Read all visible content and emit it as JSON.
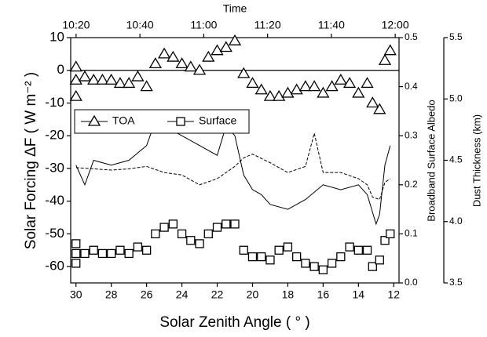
{
  "chart_data": {
    "type": "scatter",
    "xlabel": "Solar Zenith Angle ( ° )",
    "ylabel": "Solar Forcing ΔF ( W m⁻² )",
    "x2label": "Time",
    "y2label": "Broadband Surface Albedo",
    "y3label": "Dust Thickness (km)",
    "xlim": [
      30.3,
      11.7
    ],
    "xticks": [
      30,
      28,
      26,
      24,
      22,
      20,
      18,
      16,
      14,
      12
    ],
    "x2lim": [
      618.3,
      721.2
    ],
    "x2ticks": [
      {
        "value": 620,
        "label": "10:20"
      },
      {
        "value": 640,
        "label": "10:40"
      },
      {
        "value": 660,
        "label": "11:00"
      },
      {
        "value": 680,
        "label": "11:20"
      },
      {
        "value": 700,
        "label": "11:40"
      },
      {
        "value": 720,
        "label": "12:00"
      }
    ],
    "ylim": [
      -65,
      10
    ],
    "yticks": [
      -60,
      -50,
      -40,
      -30,
      -20,
      -10,
      0,
      10
    ],
    "y2lim": [
      0,
      0.5
    ],
    "y2ticks": [
      {
        "value": 0,
        "label": "0.0"
      },
      0.1,
      0.2,
      0.3,
      0.4,
      0.5
    ],
    "y3lim": [
      3.5,
      5.5
    ],
    "y3ticks": [
      3.5,
      {
        "value": 4,
        "label": "4.0"
      },
      4.5,
      {
        "value": 5,
        "label": "5.0"
      },
      5.5
    ],
    "zero_line": true,
    "legend": "upper left",
    "series": [
      {
        "name": "TOA",
        "marker": "triangle",
        "color": "#000",
        "x": [
          30,
          30,
          30,
          29.5,
          29,
          28.5,
          28,
          27.5,
          27,
          26.5,
          26,
          25.5,
          25,
          24.5,
          24,
          23.5,
          23,
          22.5,
          22,
          21.5,
          21,
          20.5,
          20,
          19.5,
          19,
          18.5,
          18,
          17.5,
          17,
          16.5,
          16,
          15.5,
          15,
          14.5,
          14,
          13.5,
          13.2,
          12.8,
          12.5,
          12.2
        ],
        "values": [
          1,
          -3,
          -8,
          -2,
          -3,
          -3,
          -3,
          -4,
          -4,
          -2,
          -5,
          2,
          5,
          4,
          2,
          1,
          0,
          4,
          6,
          7,
          9,
          -1,
          -4,
          -6,
          -8,
          -8,
          -7,
          -6,
          -5,
          -5,
          -7,
          -5,
          -3,
          -4,
          -7,
          -4,
          -10,
          -12,
          3,
          6
        ]
      },
      {
        "name": "Surface",
        "marker": "square",
        "color": "#000",
        "x": [
          30,
          30,
          30,
          29.5,
          29,
          28.5,
          28,
          27.5,
          27,
          26.5,
          26,
          25.5,
          25,
          24.5,
          24,
          23.5,
          23,
          22.5,
          22,
          21.5,
          21,
          20.5,
          20,
          19.5,
          19,
          18.5,
          18,
          17.5,
          17,
          16.5,
          16,
          15.5,
          15,
          14.5,
          14,
          13.5,
          13.2,
          12.8,
          12.5,
          12.2
        ],
        "values": [
          -53,
          -56,
          -59,
          -56,
          -55,
          -56,
          -56,
          -55,
          -56,
          -54,
          -55,
          -50,
          -48,
          -47,
          -50,
          -52,
          -53,
          -50,
          -48,
          -47,
          -47,
          -55,
          -57,
          -57,
          -58,
          -55,
          -54,
          -57,
          -59,
          -60,
          -61,
          -59,
          -57,
          -54,
          -55,
          -55,
          -60,
          -58,
          -52,
          -50
        ]
      },
      {
        "axis": "y2",
        "line": "solid",
        "color": "#000",
        "x": [
          30,
          29.5,
          29,
          28,
          27,
          26,
          25.5,
          25,
          24.5,
          24,
          23,
          22,
          21.5,
          21,
          20.5,
          20,
          19.5,
          19,
          18,
          17,
          16,
          15,
          14,
          13.5,
          13,
          12.8,
          12.5,
          12.2
        ],
        "values": [
          0.24,
          0.2,
          0.25,
          0.24,
          0.25,
          0.28,
          0.33,
          0.32,
          0.31,
          0.3,
          0.28,
          0.26,
          0.32,
          0.3,
          0.22,
          0.19,
          0.18,
          0.16,
          0.15,
          0.17,
          0.2,
          0.19,
          0.2,
          0.18,
          0.12,
          0.14,
          0.24,
          0.28
        ]
      },
      {
        "axis": "y3",
        "line": "dash",
        "color": "#000",
        "x": [
          30,
          29,
          28,
          27,
          26,
          25,
          24,
          23,
          22,
          21,
          20.5,
          20,
          19,
          18,
          17,
          16.5,
          16,
          15,
          14,
          13.5,
          13.2,
          12.8,
          12.5,
          12.2
        ],
        "values": [
          4.44,
          4.43,
          4.42,
          4.43,
          4.45,
          4.4,
          4.38,
          4.3,
          4.35,
          4.45,
          4.52,
          4.55,
          4.48,
          4.4,
          4.45,
          4.72,
          4.4,
          4.4,
          4.35,
          4.3,
          4.2,
          4.18,
          4.32,
          4.35
        ]
      }
    ]
  }
}
